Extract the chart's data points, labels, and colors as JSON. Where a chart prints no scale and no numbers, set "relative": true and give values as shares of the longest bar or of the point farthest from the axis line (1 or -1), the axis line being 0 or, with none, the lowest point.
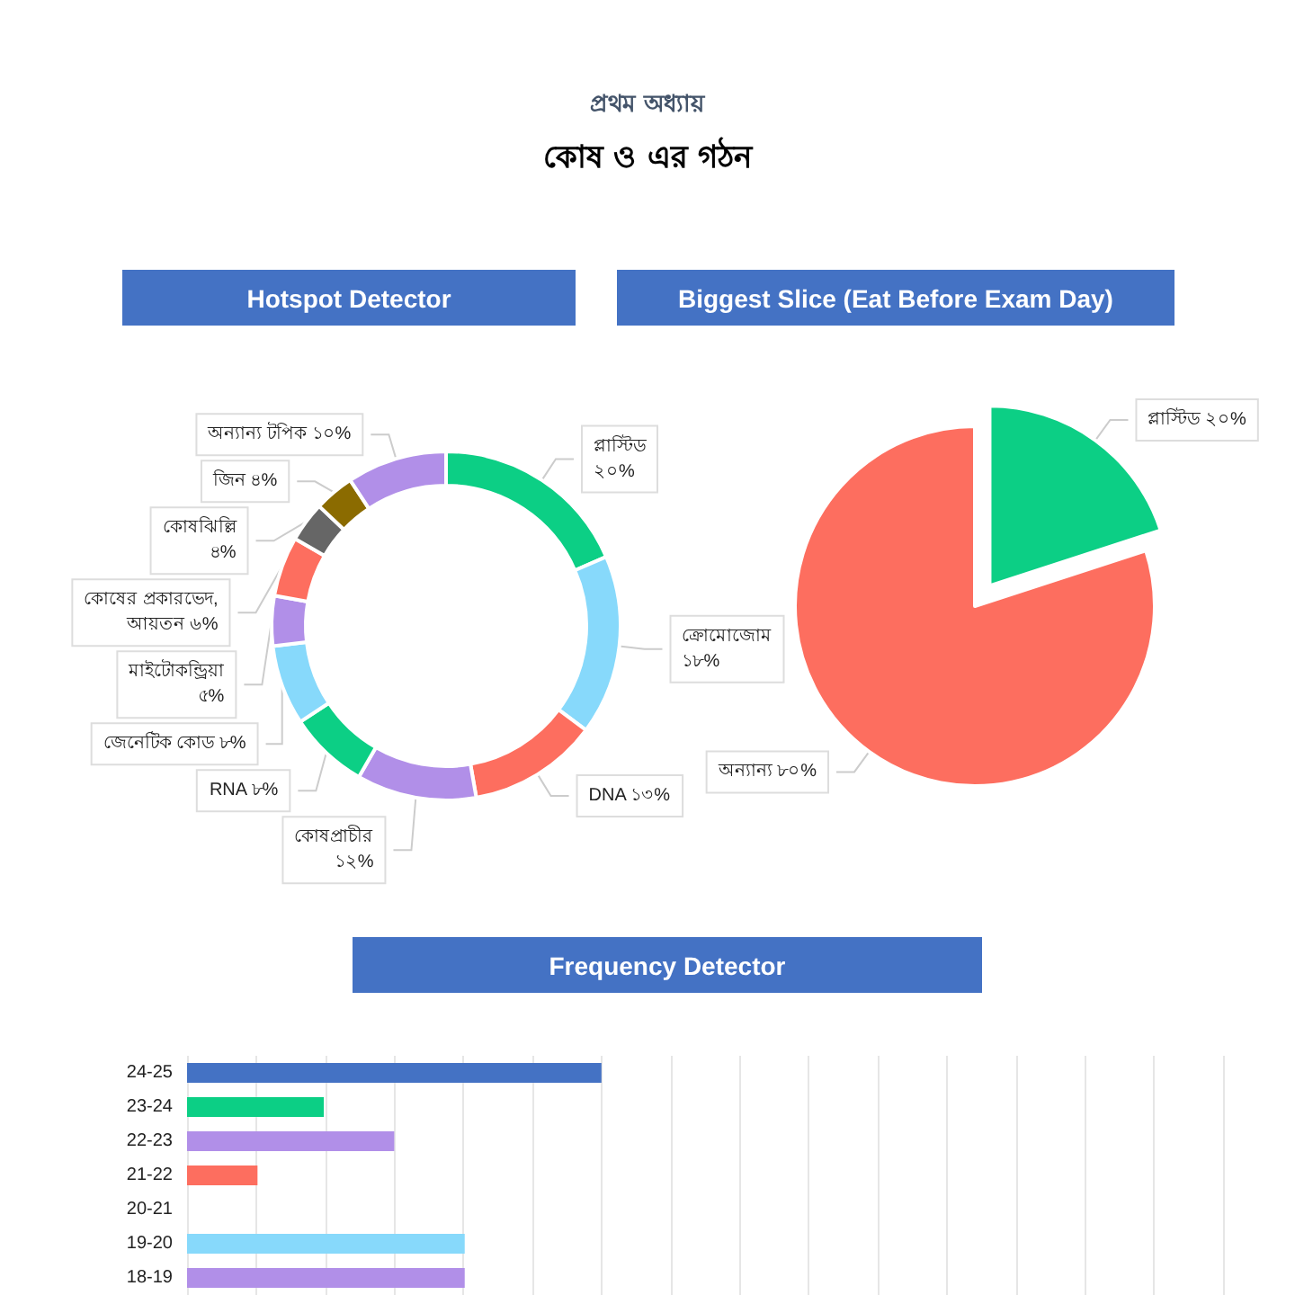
{
  "chart_data": [
    {
      "type": "donut",
      "title": "Hotspot Detector",
      "annotations": [
        "প্রথম অধ্যায়",
        "কোষ ও এর গঠন"
      ],
      "categories": [
        "প্লাস্টিড",
        "ক্রোমোজোম",
        "DNA",
        "কোষপ্রাচীর",
        "RNA",
        "জেনেটিক কোড",
        "মাইটোকন্ড্রিয়া",
        "কোষের প্রকারভেদ, আয়তন",
        "কোষঝিল্লি",
        "জিন",
        "অন্যান্য টপিক"
      ],
      "values": [
        20,
        18,
        13,
        12,
        8,
        8,
        5,
        6,
        4,
        4,
        10
      ],
      "value_labels": [
        "২০%",
        "১৮%",
        "১৩%",
        "১২%",
        "৮%",
        "৮%",
        "৫%",
        "৬%",
        "৪%",
        "৪%",
        "১০%"
      ],
      "colors": [
        "#0ccf85",
        "#87d9fb",
        "#fd6e5f",
        "#b18fe8",
        "#0ccf85",
        "#87d9fb",
        "#b18fe8",
        "#fd6e5f",
        "#666666",
        "#8b6b00",
        "#b18fe8"
      ],
      "legend": false
    },
    {
      "type": "pie",
      "title": "Biggest Slice (Eat Before Exam Day)",
      "categories": [
        "প্লাস্টিড",
        "অন্যান্য"
      ],
      "values": [
        20,
        80
      ],
      "value_labels": [
        "২০%",
        "৮০%"
      ],
      "colors": [
        "#0ccf85",
        "#fd6e5f"
      ],
      "legend": false
    },
    {
      "type": "bar",
      "title": "Frequency Detector",
      "orientation": "horizontal",
      "relative": true,
      "grid": "x",
      "tick_labels": "y",
      "categories": [
        "24-25",
        "23-24",
        "22-23",
        "21-22",
        "20-21",
        "19-20",
        "18-19"
      ],
      "values": [
        1,
        0.33,
        0.5,
        0.17,
        0,
        0.67,
        0.67
      ],
      "colors": [
        "#4472c4",
        "#0ccf85",
        "#b18fe8",
        "#fd6e5f",
        "#87d9fb",
        "#87d9fb",
        "#b18fe8"
      ],
      "legend": false
    }
  ]
}
